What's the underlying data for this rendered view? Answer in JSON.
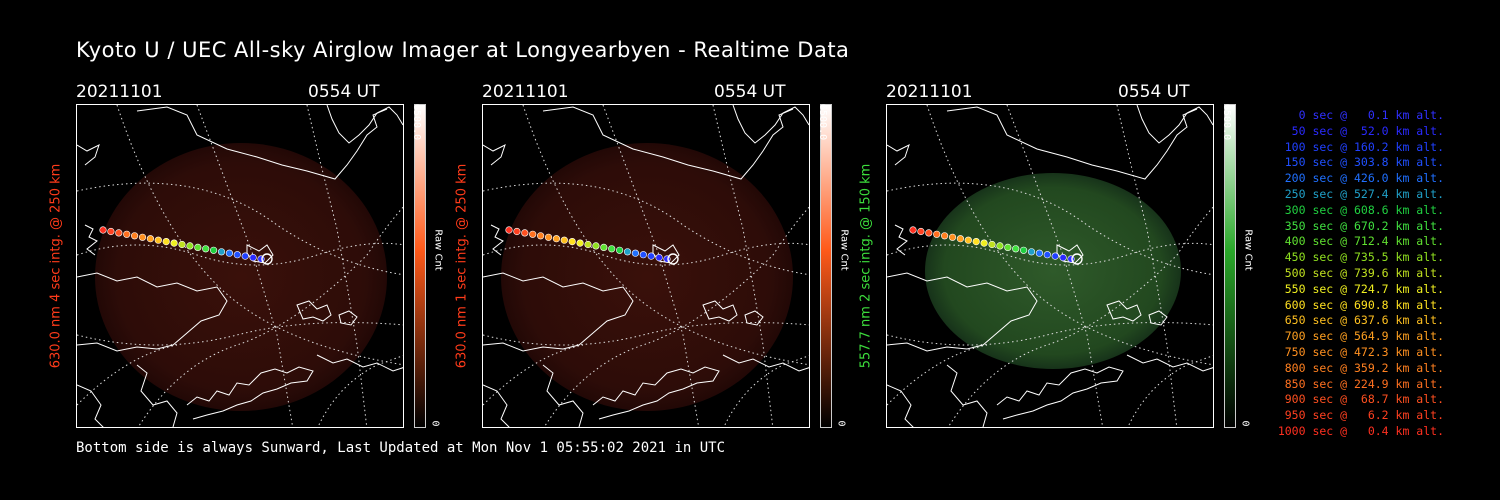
{
  "title": "Kyoto U / UEC All-sky Airglow Imager at Longyearbyen - Realtime Data",
  "footer": "Bottom side is always Sunward, Last Updated at Mon Nov  1 05:55:02 2021 in UTC",
  "colors": {
    "background": "#000000",
    "red_channel": "#ff3b1a",
    "green_channel": "#3cdd3c"
  },
  "chart_data": [
    {
      "type": "heatmap",
      "date": "20211101",
      "time": "0554 UT",
      "ylabel": "630.0 nm 4 sec intg. @ 250 km",
      "label_color": "#ff3b1a",
      "colorbar": {
        "max": "6500.0",
        "min": "0",
        "unit": "Raw Cnt",
        "color": "#ff5a1a"
      }
    },
    {
      "type": "heatmap",
      "date": "20211101",
      "time": "0554 UT",
      "ylabel": "630.0 nm 1 sec intg. @ 250 km",
      "label_color": "#ff3b1a",
      "colorbar": {
        "max": "6500.0",
        "min": "0",
        "unit": "Raw Cnt",
        "color": "#ff5a1a"
      }
    },
    {
      "type": "heatmap",
      "date": "20211101",
      "time": "0554 UT",
      "ylabel": "557.7 nm 2 sec intg. @ 150 km",
      "label_color": "#3cdd3c",
      "colorbar": {
        "max": "6500.0",
        "min": "0",
        "unit": "Raw Cnt",
        "color": "#2aa82a"
      }
    }
  ],
  "legend": [
    {
      "text": "0 sec @   0.1 km alt.",
      "color": "#3030ff"
    },
    {
      "text": "50 sec @  52.0 km alt.",
      "color": "#2a2aff"
    },
    {
      "text": "100 sec @ 160.2 km alt.",
      "color": "#2040ff"
    },
    {
      "text": "150 sec @ 303.8 km alt.",
      "color": "#2050ff"
    },
    {
      "text": "200 sec @ 426.0 km alt.",
      "color": "#2070ff"
    },
    {
      "text": "250 sec @ 527.4 km alt.",
      "color": "#20a0c8"
    },
    {
      "text": "300 sec @ 608.6 km alt.",
      "color": "#20d040"
    },
    {
      "text": "350 sec @ 670.2 km alt.",
      "color": "#40e040"
    },
    {
      "text": "400 sec @ 712.4 km alt.",
      "color": "#60e030"
    },
    {
      "text": "450 sec @ 735.5 km alt.",
      "color": "#90e020"
    },
    {
      "text": "500 sec @ 739.6 km alt.",
      "color": "#c0e020"
    },
    {
      "text": "550 sec @ 724.7 km alt.",
      "color": "#f0f020"
    },
    {
      "text": "600 sec @ 690.8 km alt.",
      "color": "#ffe020"
    },
    {
      "text": "650 sec @ 637.6 km alt.",
      "color": "#ffc020"
    },
    {
      "text": "700 sec @ 564.9 km alt.",
      "color": "#ffa020"
    },
    {
      "text": "750 sec @ 472.3 km alt.",
      "color": "#ff9020"
    },
    {
      "text": "800 sec @ 359.2 km alt.",
      "color": "#ff8020"
    },
    {
      "text": "850 sec @ 224.9 km alt.",
      "color": "#ff7020"
    },
    {
      "text": "900 sec @  68.7 km alt.",
      "color": "#ff5020"
    },
    {
      "text": "950 sec @   6.2 km alt.",
      "color": "#ff4020"
    },
    {
      "text": "1000 sec @   0.4 km alt.",
      "color": "#ff3020"
    }
  ]
}
